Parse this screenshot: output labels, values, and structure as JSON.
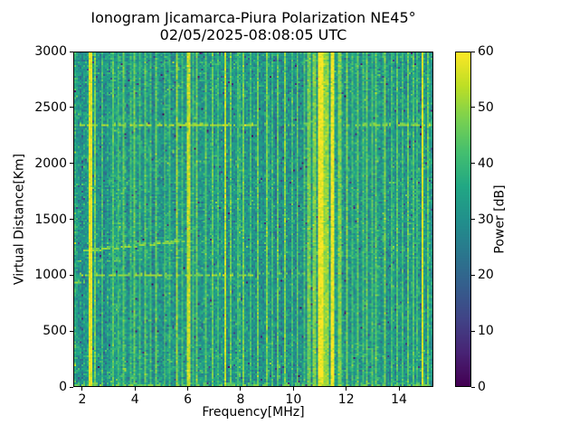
{
  "figure": {
    "title_line1": "Ionogram Jicamarca-Piura Polarization NE45°",
    "title_line2": "02/05/2025-08:08:05 UTC"
  },
  "chart_data": {
    "type": "heatmap",
    "title": "Ionogram Jicamarca-Piura Polarization NE45°",
    "subtitle": "02/05/2025-08:08:05 UTC",
    "xlabel": "Frequency[MHz]",
    "ylabel": "Virtual Distance[Km]",
    "xlim": [
      1.66,
      15.3
    ],
    "ylim": [
      0,
      3000
    ],
    "x_ticks": [
      2,
      4,
      6,
      8,
      10,
      12,
      14
    ],
    "y_ticks": [
      0,
      500,
      1000,
      1500,
      2000,
      2500,
      3000
    ],
    "grid": {
      "cols": 200,
      "rows": 186
    },
    "colorbar": {
      "label": "Power [dB]",
      "min": 0,
      "max": 60,
      "ticks": [
        0,
        10,
        20,
        30,
        40,
        50,
        60
      ],
      "colormap": "viridis",
      "stops": [
        [
          0,
          "#440154"
        ],
        [
          0.1,
          "#482475"
        ],
        [
          0.2,
          "#414487"
        ],
        [
          0.3,
          "#355f8d"
        ],
        [
          0.4,
          "#2a788e"
        ],
        [
          0.5,
          "#21918c"
        ],
        [
          0.6,
          "#22a884"
        ],
        [
          0.7,
          "#44bf70"
        ],
        [
          0.8,
          "#7ad151"
        ],
        [
          0.9,
          "#bddf26"
        ],
        [
          1,
          "#fde725"
        ]
      ]
    },
    "noise": {
      "mean": 31.5,
      "col_sd": 2.2,
      "row_sd": 0.6,
      "cell_sd": 4.3,
      "dark_prob": 0.013,
      "dark_drop": 18,
      "bright_prob": 0.02,
      "bright_add": 7,
      "seed": 7
    },
    "zones": [
      [
        8.2,
        10.8,
        -1.2
      ],
      [
        12.0,
        15.3,
        0.3
      ],
      [
        1.66,
        2.15,
        -0.6
      ]
    ],
    "rfi_stripes": [
      [
        2.25,
        0.12,
        58
      ],
      [
        2.42,
        0.07,
        46
      ],
      [
        2.75,
        0.07,
        41
      ],
      [
        3.1,
        0.07,
        44
      ],
      [
        3.35,
        0.07,
        42
      ],
      [
        3.55,
        0.07,
        45
      ],
      [
        3.8,
        0.07,
        41
      ],
      [
        3.95,
        0.07,
        46
      ],
      [
        4.15,
        0.07,
        41
      ],
      [
        4.35,
        0.07,
        44
      ],
      [
        4.55,
        0.07,
        41
      ],
      [
        4.75,
        0.07,
        45
      ],
      [
        5.1,
        0.07,
        44
      ],
      [
        5.3,
        0.07,
        41
      ],
      [
        5.57,
        0.08,
        50
      ],
      [
        5.8,
        0.07,
        41
      ],
      [
        6.02,
        0.08,
        54
      ],
      [
        6.2,
        0.07,
        41
      ],
      [
        6.35,
        0.07,
        46
      ],
      [
        6.65,
        0.07,
        44
      ],
      [
        6.95,
        0.07,
        45
      ],
      [
        7.15,
        0.07,
        41
      ],
      [
        7.42,
        0.08,
        54
      ],
      [
        7.62,
        0.07,
        45
      ],
      [
        7.9,
        0.07,
        42
      ],
      [
        8.1,
        0.07,
        47
      ],
      [
        8.35,
        0.07,
        41
      ],
      [
        8.62,
        0.07,
        46
      ],
      [
        8.97,
        0.07,
        47
      ],
      [
        9.2,
        0.07,
        41
      ],
      [
        9.42,
        0.07,
        45
      ],
      [
        9.7,
        0.07,
        48
      ],
      [
        9.95,
        0.07,
        41
      ],
      [
        10.12,
        0.07,
        45
      ],
      [
        10.4,
        0.07,
        42
      ],
      [
        10.6,
        0.1,
        47
      ],
      [
        10.8,
        0.1,
        48
      ],
      [
        11.02,
        0.2,
        59
      ],
      [
        11.25,
        0.2,
        50
      ],
      [
        11.47,
        0.15,
        58
      ],
      [
        11.75,
        0.08,
        48
      ],
      [
        12.05,
        0.07,
        47
      ],
      [
        12.25,
        0.07,
        41
      ],
      [
        12.45,
        0.07,
        44
      ],
      [
        12.65,
        0.07,
        41
      ],
      [
        12.82,
        0.07,
        45
      ],
      [
        13.0,
        0.07,
        42
      ],
      [
        13.18,
        0.07,
        44
      ],
      [
        13.52,
        0.07,
        47
      ],
      [
        13.75,
        0.07,
        41
      ],
      [
        13.95,
        0.07,
        44
      ],
      [
        14.15,
        0.07,
        41
      ],
      [
        14.35,
        0.07,
        45
      ],
      [
        14.6,
        0.07,
        43
      ],
      [
        14.75,
        0.07,
        41
      ],
      [
        14.93,
        0.12,
        57
      ],
      [
        15.1,
        0.07,
        45
      ]
    ],
    "echo_lines": [
      {
        "km": 2352,
        "f0": 1.66,
        "f1": 8.5,
        "p": 52,
        "on": 0.7
      },
      {
        "km": 2352,
        "f0": 8.5,
        "f1": 11.9,
        "p": 46,
        "on": 0.15
      },
      {
        "km": 2352,
        "f0": 11.9,
        "f1": 15.3,
        "p": 50,
        "on": 0.55
      },
      {
        "km": 985,
        "f0": 1.66,
        "f1": 8.6,
        "p": 50,
        "on": 0.65
      },
      {
        "km": 1015,
        "f0": 8.6,
        "f1": 10.45,
        "p": 47,
        "on": 0.4
      },
      {
        "km": 1115,
        "f0": 1.66,
        "f1": 3.4,
        "p": 46,
        "on": 0.45
      },
      {
        "km": 935,
        "f0": 1.66,
        "f1": 2.6,
        "p": 47,
        "on": 0.5
      },
      {
        "km": 12,
        "f0": 1.66,
        "f1": 15.3,
        "p": 47,
        "on": 0.45
      }
    ],
    "diagonal_traces": [
      {
        "f0": 2.0,
        "km0": 1210,
        "f1": 5.9,
        "km1": 1300,
        "p": 49,
        "on": 0.75
      }
    ]
  }
}
